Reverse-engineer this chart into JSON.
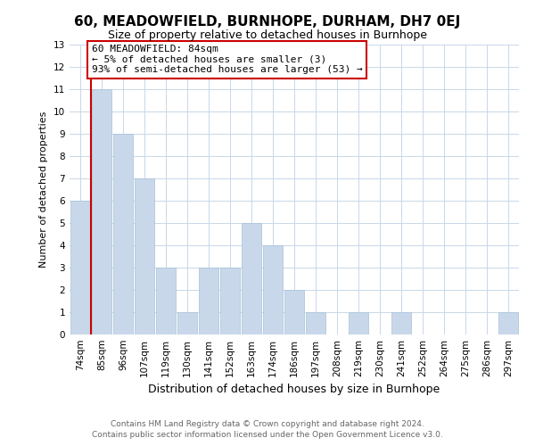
{
  "title": "60, MEADOWFIELD, BURNHOPE, DURHAM, DH7 0EJ",
  "subtitle": "Size of property relative to detached houses in Burnhope",
  "xlabel": "Distribution of detached houses by size in Burnhope",
  "ylabel": "Number of detached properties",
  "bar_labels": [
    "74sqm",
    "85sqm",
    "96sqm",
    "107sqm",
    "119sqm",
    "130sqm",
    "141sqm",
    "152sqm",
    "163sqm",
    "174sqm",
    "186sqm",
    "197sqm",
    "208sqm",
    "219sqm",
    "230sqm",
    "241sqm",
    "252sqm",
    "264sqm",
    "275sqm",
    "286sqm",
    "297sqm"
  ],
  "bar_values": [
    6,
    11,
    9,
    7,
    3,
    1,
    3,
    3,
    5,
    4,
    2,
    1,
    0,
    1,
    0,
    1,
    0,
    0,
    0,
    0,
    1
  ],
  "bar_color": "#c8d8ea",
  "bar_edge_color": "#a8c0d8",
  "annotation_title": "60 MEADOWFIELD: 84sqm",
  "annotation_line1": "← 5% of detached houses are smaller (3)",
  "annotation_line2": "93% of semi-detached houses are larger (53) →",
  "annotation_box_facecolor": "#ffffff",
  "annotation_box_edgecolor": "#cc0000",
  "red_line_color": "#cc0000",
  "ylim": [
    0,
    13
  ],
  "yticks": [
    0,
    1,
    2,
    3,
    4,
    5,
    6,
    7,
    8,
    9,
    10,
    11,
    12,
    13
  ],
  "footer_line1": "Contains HM Land Registry data © Crown copyright and database right 2024.",
  "footer_line2": "Contains public sector information licensed under the Open Government Licence v3.0.",
  "grid_color": "#c8d8e8",
  "background_color": "#ffffff",
  "title_fontsize": 11,
  "subtitle_fontsize": 9,
  "ylabel_fontsize": 8,
  "xlabel_fontsize": 9,
  "tick_fontsize": 7.5,
  "footer_fontsize": 6.5,
  "annotation_fontsize": 8
}
